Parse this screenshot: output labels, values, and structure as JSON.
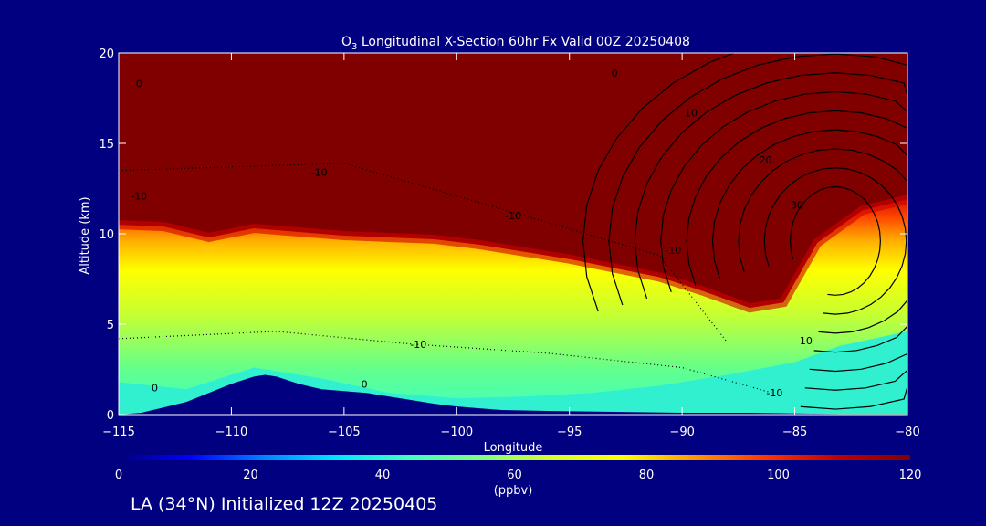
{
  "chart_data": {
    "type": "heatmap",
    "title_prefix": "O",
    "title_sub": "3",
    "title_rest": " Longitudinal X-Section 60hr  Fx Valid 00Z 20250408",
    "xlabel": "Longitude",
    "ylabel": "Altitude (km)",
    "xlim": [
      -115,
      -80
    ],
    "ylim": [
      0,
      20
    ],
    "x_ticks": [
      -115,
      -110,
      -105,
      -100,
      -95,
      -90,
      -85,
      -80
    ],
    "x_tick_labels": [
      "−115",
      "−110",
      "−105",
      "−100",
      "−95",
      "−90",
      "−85",
      "−80"
    ],
    "y_ticks": [
      0,
      5,
      10,
      15,
      20
    ],
    "y_tick_labels": [
      "0",
      "5",
      "10",
      "15",
      "20"
    ],
    "colorbar": {
      "min": 0,
      "max": 120,
      "ticks": [
        0,
        20,
        40,
        60,
        80,
        100,
        120
      ],
      "tick_labels": [
        "0",
        "20",
        "40",
        "60",
        "80",
        "100",
        "120"
      ],
      "units": "(ppbv)",
      "colormap": [
        "#00007f",
        "#0000ff",
        "#0080ff",
        "#00e5ff",
        "#40ffbf",
        "#80ff80",
        "#d4ff2a",
        "#ffff00",
        "#ff9900",
        "#ff3300",
        "#c00000",
        "#800000"
      ]
    },
    "ozone_field": {
      "description_units": "ppbv",
      "tropopause_km_by_longitude": {
        "lon": [
          -115,
          -113,
          -111,
          -109,
          -107,
          -105,
          -103,
          -101,
          -99,
          -97,
          -95,
          -93,
          -91,
          -89,
          -87,
          -85.5,
          -84,
          -82,
          -80
        ],
        "alt": [
          10.5,
          10.4,
          9.8,
          10.3,
          10.1,
          9.9,
          9.8,
          9.7,
          9.4,
          9.0,
          8.6,
          8.1,
          7.6,
          6.8,
          5.9,
          6.2,
          9.5,
          11.3,
          11.9
        ]
      },
      "cyan_layer_km_by_longitude": {
        "lon": [
          -115,
          -112,
          -109,
          -106,
          -103,
          -100,
          -97,
          -94,
          -91,
          -88,
          -85,
          -83,
          -80
        ],
        "alt": [
          1.8,
          1.4,
          2.6,
          2.0,
          1.2,
          0.9,
          1.0,
          1.2,
          1.6,
          2.2,
          2.9,
          3.8,
          4.6
        ]
      }
    },
    "terrain_km_by_longitude": {
      "lon": [
        -115,
        -114,
        -113,
        -112,
        -111,
        -110,
        -109,
        -108.5,
        -108,
        -107,
        -106,
        -105,
        -104,
        -103,
        -102,
        -101,
        -100,
        -99,
        -98,
        -96,
        -93,
        -90,
        -87,
        -84,
        -82,
        -80
      ],
      "alt": [
        0.0,
        0.1,
        0.4,
        0.7,
        1.2,
        1.7,
        2.1,
        2.2,
        2.1,
        1.7,
        1.4,
        1.3,
        1.2,
        1.0,
        0.8,
        0.6,
        0.45,
        0.35,
        0.25,
        0.2,
        0.15,
        0.1,
        0.1,
        0.05,
        0.0,
        0.0
      ]
    },
    "contour_labels": [
      {
        "text": "0",
        "lon": -114.1,
        "alt": 18.3
      },
      {
        "text": "0",
        "lon": -93.0,
        "alt": 18.9
      },
      {
        "text": "10",
        "lon": -89.6,
        "alt": 16.7
      },
      {
        "text": "20",
        "lon": -86.3,
        "alt": 14.1
      },
      {
        "text": "30",
        "lon": -84.9,
        "alt": 11.6
      },
      {
        "text": "-10",
        "lon": -114.1,
        "alt": 12.1
      },
      {
        "text": "-10",
        "lon": -106.1,
        "alt": 13.4
      },
      {
        "text": "-10",
        "lon": -97.5,
        "alt": 11.0
      },
      {
        "text": "-10",
        "lon": -90.4,
        "alt": 9.1
      },
      {
        "text": "-10",
        "lon": -101.7,
        "alt": 3.9
      },
      {
        "text": "0",
        "lon": -113.4,
        "alt": 1.5
      },
      {
        "text": "0",
        "lon": -104.1,
        "alt": 1.7
      },
      {
        "text": "10",
        "lon": -84.5,
        "alt": 4.1
      },
      {
        "text": "-10",
        "lon": -85.9,
        "alt": 1.2
      }
    ]
  },
  "footer_text": "LA (34°N) Initialized 12Z 20250405"
}
